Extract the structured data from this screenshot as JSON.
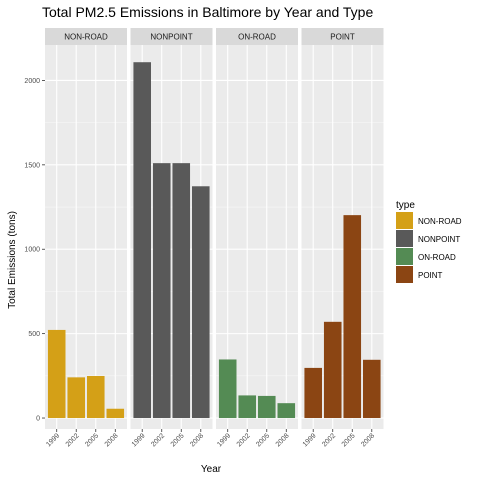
{
  "chart_data": {
    "type": "bar",
    "title": "Total PM2.5 Emissions in Baltimore by Year and Type",
    "xlabel": "Year",
    "ylabel": "Total Emissions (tons)",
    "categories": [
      "1999",
      "2002",
      "2005",
      "2008"
    ],
    "y_ticks": [
      0,
      500,
      1000,
      1500,
      2000
    ],
    "ylim": [
      -65,
      2210
    ],
    "grid": true,
    "legend": {
      "title": "type",
      "position": "right"
    },
    "series": [
      {
        "name": "NON-ROAD",
        "color": "#D4A017",
        "values": [
          522,
          241,
          249,
          55
        ]
      },
      {
        "name": "NONPOINT",
        "color": "#595959",
        "values": [
          2108,
          1510,
          1510,
          1373
        ]
      },
      {
        "name": "ON-ROAD",
        "color": "#548B54",
        "values": [
          347,
          134,
          131,
          88
        ]
      },
      {
        "name": "POINT",
        "color": "#8B4513",
        "values": [
          297,
          570,
          1202,
          345
        ]
      }
    ]
  }
}
